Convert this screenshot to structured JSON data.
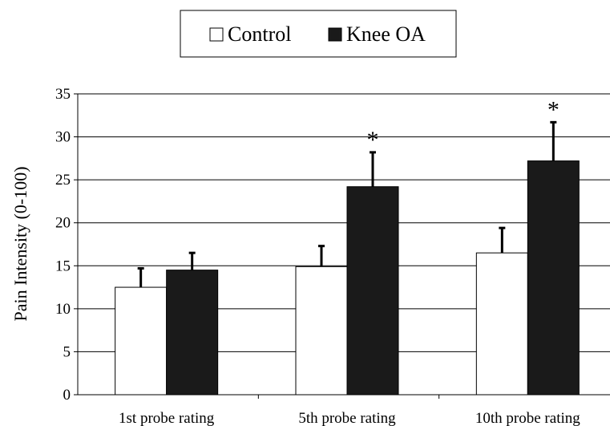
{
  "chart_data": {
    "type": "bar",
    "title": "",
    "xlabel": "",
    "ylabel": "Pain Intensity (0-100)",
    "ylim": [
      0,
      35
    ],
    "yticks": [
      0,
      5,
      10,
      15,
      20,
      25,
      30,
      35
    ],
    "grid": true,
    "legend_position": "top-center",
    "categories": [
      "1st probe rating",
      "5th probe rating",
      "10th probe rating"
    ],
    "series": [
      {
        "name": "Control",
        "color": "#ffffff",
        "values": [
          12.5,
          14.9,
          16.5
        ],
        "error": [
          2.2,
          2.4,
          2.9
        ]
      },
      {
        "name": "Knee OA",
        "color": "#1a1a1a",
        "values": [
          14.5,
          24.2,
          27.2
        ],
        "error": [
          2.0,
          4.0,
          4.5
        ]
      }
    ],
    "annotations": [
      {
        "category_index": 1,
        "series_index": 1,
        "text": "*"
      },
      {
        "category_index": 2,
        "series_index": 1,
        "text": "*"
      }
    ]
  }
}
